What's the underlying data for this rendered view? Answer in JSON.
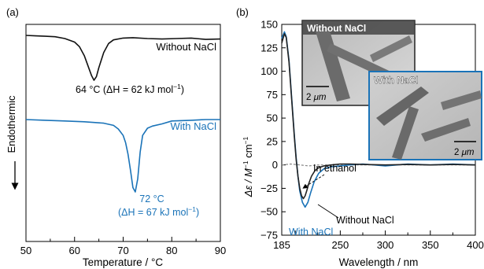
{
  "chart_data": [
    {
      "panel_label": "(a)",
      "type": "line",
      "xlabel": "Temperature / °C",
      "ylabel": "Endothermic",
      "xlim": [
        50,
        90
      ],
      "x_ticks": [
        "50",
        "60",
        "70",
        "80",
        "90"
      ],
      "grid": false,
      "color_without": "#111111",
      "color_with": "#1a73b8",
      "series": [
        {
          "name": "Without NaCl",
          "x": [
            50,
            52,
            54,
            56,
            58,
            60,
            61,
            62,
            63,
            63.5,
            64,
            64.5,
            65,
            66,
            67,
            68,
            70,
            72,
            75,
            78,
            81,
            84,
            87,
            90
          ],
          "y": [
            0,
            0.01,
            0.02,
            0.03,
            0.07,
            0.15,
            0.25,
            0.45,
            0.75,
            0.9,
            1.0,
            0.92,
            0.72,
            0.38,
            0.18,
            0.1,
            0.06,
            0.05,
            0.07,
            0.08,
            0.07,
            0.06,
            0.09,
            0.08
          ]
        },
        {
          "name": "With NaCl",
          "x": [
            50,
            54,
            58,
            62,
            64,
            66,
            68,
            69,
            70,
            70.5,
            71,
            71.5,
            72,
            72.5,
            73,
            73.5,
            74,
            75,
            76,
            78,
            80,
            84,
            87,
            90
          ],
          "y": [
            0,
            0.01,
            0.02,
            0.03,
            0.04,
            0.05,
            0.08,
            0.13,
            0.22,
            0.32,
            0.48,
            0.7,
            0.94,
            1.0,
            0.82,
            0.45,
            0.22,
            0.12,
            0.09,
            0.06,
            0.02,
            0.01,
            0.0,
            0.0
          ]
        }
      ],
      "annotations": {
        "without_label": "Without NaCl",
        "without_peak": "64 °C (ΔH = 62 kJ mol",
        "with_label": "With NaCl",
        "with_peak_temp": "72 °C",
        "with_peak_dh": "(ΔH = 67 kJ mol",
        "superscript": "−1",
        "close_paren": ")"
      }
    },
    {
      "panel_label": "(b)",
      "type": "line",
      "xlabel": "Wavelength / nm",
      "ylabel": "Δε / M",
      "ylabel_sup1": "−1",
      "ylabel_unit2": " cm",
      "ylabel_sup2": "−1",
      "xlim": [
        185,
        400
      ],
      "ylim": [
        -75,
        150
      ],
      "x_ticks": [
        185,
        250,
        300,
        350,
        400
      ],
      "y_ticks": [
        -75,
        -50,
        -25,
        0,
        25,
        50,
        75,
        100,
        125,
        150
      ],
      "grid": false,
      "color_without": "#222222",
      "color_with": "#1a73b8",
      "color_ethanol": "#888888",
      "series": [
        {
          "name": "Without NaCl",
          "x": [
            185,
            188,
            190,
            193,
            196,
            199,
            201,
            203,
            205,
            207,
            209,
            211,
            213,
            215,
            218,
            222,
            226,
            232,
            240,
            250,
            260,
            275,
            300,
            325,
            350,
            375,
            400
          ],
          "y": [
            130,
            140,
            136,
            110,
            70,
            30,
            6,
            -12,
            -25,
            -33,
            -36,
            -33,
            -27,
            -20,
            -12,
            -6,
            -3,
            -1,
            0,
            1,
            1,
            0.5,
            0,
            0.5,
            0,
            0.5,
            0
          ]
        },
        {
          "name": "With NaCl",
          "x": [
            185,
            188,
            190,
            193,
            196,
            199,
            201,
            203,
            205,
            208,
            211,
            214,
            217,
            221,
            226,
            232,
            240,
            250,
            260,
            275,
            300,
            325,
            350,
            375,
            400
          ],
          "y": [
            135,
            142,
            137,
            112,
            72,
            32,
            8,
            -12,
            -28,
            -40,
            -45,
            -40,
            -30,
            -18,
            -9,
            -4,
            -2,
            -1,
            0,
            1,
            -1,
            1,
            0,
            1,
            0
          ]
        },
        {
          "name": "In ethanol",
          "x": [
            185,
            195,
            205,
            215,
            225,
            240,
            260,
            300,
            350,
            400
          ],
          "y": [
            0,
            1,
            0,
            -1,
            0,
            0,
            0,
            0,
            0,
            0
          ],
          "dashed": true
        }
      ],
      "annotations": {
        "in_ethanol": "In ethanol",
        "without": "Without NaCl",
        "with": "With NaCl"
      },
      "insets": [
        {
          "title": "Without NaCl",
          "scale_bar": "2 μm",
          "scale_value": "2",
          "scale_unit": "μm",
          "border_color": "#222222"
        },
        {
          "title": "With NaCl",
          "scale_bar": "2 μm",
          "scale_value": "2",
          "scale_unit": "μm",
          "border_color": "#1a73b8"
        }
      ]
    }
  ]
}
